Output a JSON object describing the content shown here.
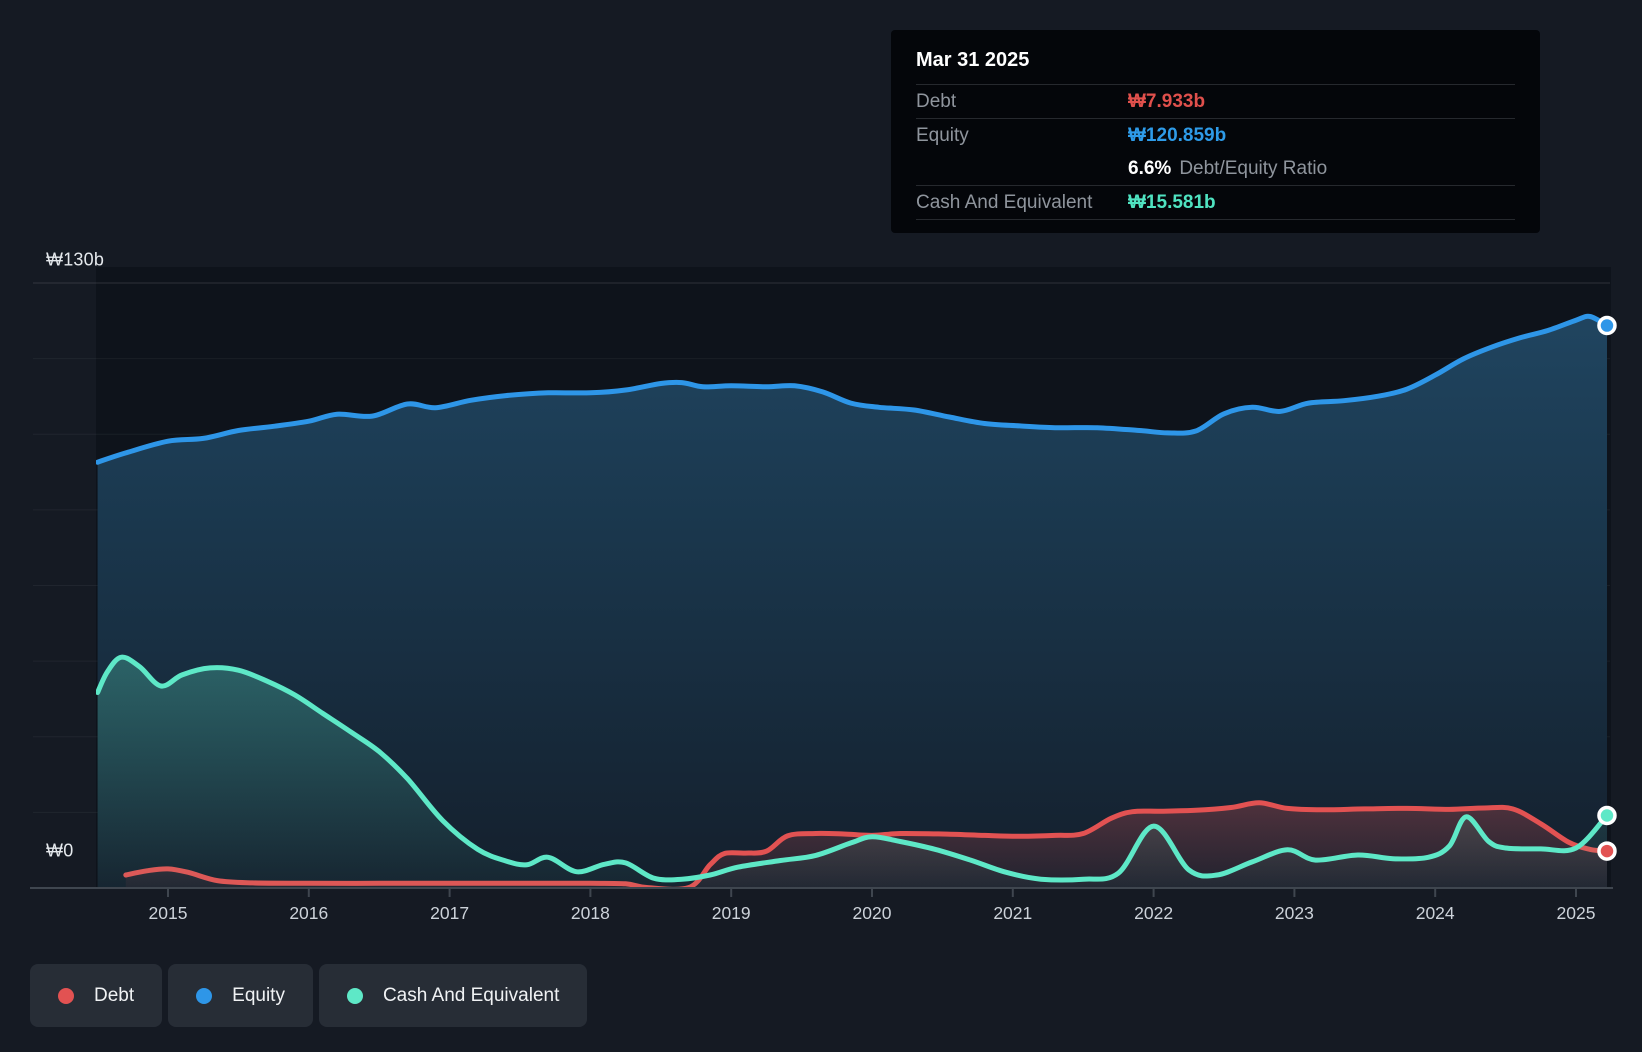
{
  "colors": {
    "debt": "#e25252",
    "equity": "#2e96e8",
    "cash": "#5ee8c7",
    "debt_text": "#e0504c",
    "equity_text": "#2e9be8",
    "cash_text": "#4fe3c1",
    "background": "#151a23",
    "plot_background": "#0e131b",
    "axis_line": "#3f464f",
    "tooltip_background": "#04060a"
  },
  "tooltip": {
    "title": "Mar 31 2025",
    "rows": [
      {
        "label": "Debt",
        "value": "₩7.933b",
        "color_key": "debt_text"
      },
      {
        "label": "Equity",
        "value": "₩120.859b",
        "color_key": "equity_text"
      },
      {
        "label": "Cash And Equivalent",
        "value": "₩15.581b",
        "color_key": "cash_text"
      }
    ],
    "ratio_value": "6.6%",
    "ratio_label": "Debt/Equity Ratio"
  },
  "axis": {
    "y_top_label": "₩130b",
    "y_zero_label": "₩0"
  },
  "legend": {
    "items": [
      {
        "label": "Debt",
        "series": "debt"
      },
      {
        "label": "Equity",
        "series": "equity"
      },
      {
        "label": "Cash And Equivalent",
        "series": "cash"
      }
    ]
  },
  "chart_data": {
    "type": "area",
    "x_axis": {
      "tick_years": [
        2015,
        2016,
        2017,
        2018,
        2019,
        2020,
        2021,
        2022,
        2023,
        2024,
        2025
      ],
      "tick_labels": [
        "2015",
        "2016",
        "2017",
        "2018",
        "2019",
        "2020",
        "2021",
        "2022",
        "2023",
        "2024",
        "2025"
      ],
      "start": 2014.5,
      "end": 2025.25
    },
    "y_axis": {
      "min": 0,
      "max": 130,
      "unit": "₩b",
      "gridline_divisions": 8,
      "grid": true
    },
    "legend_position": "bottom-left",
    "series": [
      {
        "id": "equity",
        "name": "Equity",
        "color": "#2e96e8",
        "end_value": 120.859,
        "points": [
          [
            2014.5,
            91.5
          ],
          [
            2014.7,
            93.5
          ],
          [
            2015,
            96
          ],
          [
            2015.25,
            96.6
          ],
          [
            2015.5,
            98.3
          ],
          [
            2015.75,
            99.2
          ],
          [
            2016,
            100.3
          ],
          [
            2016.2,
            101.8
          ],
          [
            2016.45,
            101.4
          ],
          [
            2016.7,
            104
          ],
          [
            2016.9,
            103.2
          ],
          [
            2017.15,
            104.8
          ],
          [
            2017.4,
            105.8
          ],
          [
            2017.7,
            106.4
          ],
          [
            2018,
            106.4
          ],
          [
            2018.25,
            107
          ],
          [
            2018.5,
            108.4
          ],
          [
            2018.65,
            108.6
          ],
          [
            2018.8,
            107.7
          ],
          [
            2019,
            107.9
          ],
          [
            2019.25,
            107.7
          ],
          [
            2019.45,
            107.9
          ],
          [
            2019.65,
            106.6
          ],
          [
            2019.85,
            104.2
          ],
          [
            2020.05,
            103.3
          ],
          [
            2020.3,
            102.7
          ],
          [
            2020.55,
            101.2
          ],
          [
            2020.8,
            99.8
          ],
          [
            2021.05,
            99.3
          ],
          [
            2021.3,
            98.9
          ],
          [
            2021.6,
            98.9
          ],
          [
            2021.9,
            98.3
          ],
          [
            2022.1,
            97.8
          ],
          [
            2022.3,
            98.2
          ],
          [
            2022.5,
            101.9
          ],
          [
            2022.7,
            103.3
          ],
          [
            2022.9,
            102.4
          ],
          [
            2023.1,
            104.2
          ],
          [
            2023.35,
            104.7
          ],
          [
            2023.6,
            105.7
          ],
          [
            2023.8,
            107.2
          ],
          [
            2024,
            110.2
          ],
          [
            2024.2,
            113.7
          ],
          [
            2024.4,
            116.2
          ],
          [
            2024.6,
            118.2
          ],
          [
            2024.8,
            119.8
          ],
          [
            2025,
            122
          ],
          [
            2025.1,
            122.8
          ],
          [
            2025.22,
            120.859
          ]
        ]
      },
      {
        "id": "debt",
        "name": "Debt",
        "color": "#e25252",
        "end_value": 7.933,
        "points": [
          [
            2014.7,
            2.8
          ],
          [
            2014.85,
            3.7
          ],
          [
            2015,
            4.1
          ],
          [
            2015.15,
            3.3
          ],
          [
            2015.35,
            1.6
          ],
          [
            2015.6,
            1.1
          ],
          [
            2016,
            1
          ],
          [
            2016.5,
            1
          ],
          [
            2017,
            1
          ],
          [
            2017.5,
            1
          ],
          [
            2018,
            1
          ],
          [
            2018.25,
            0.9
          ],
          [
            2018.4,
            0.1
          ],
          [
            2018.7,
            0.1
          ],
          [
            2018.85,
            5
          ],
          [
            2018.95,
            7.4
          ],
          [
            2019.1,
            7.5
          ],
          [
            2019.25,
            7.9
          ],
          [
            2019.4,
            11.2
          ],
          [
            2019.6,
            11.7
          ],
          [
            2019.8,
            11.6
          ],
          [
            2020,
            11.3
          ],
          [
            2020.2,
            11.7
          ],
          [
            2020.5,
            11.6
          ],
          [
            2020.8,
            11.3
          ],
          [
            2021.05,
            11.1
          ],
          [
            2021.3,
            11.3
          ],
          [
            2021.5,
            11.7
          ],
          [
            2021.7,
            15
          ],
          [
            2021.85,
            16.4
          ],
          [
            2022.05,
            16.5
          ],
          [
            2022.3,
            16.7
          ],
          [
            2022.55,
            17.3
          ],
          [
            2022.75,
            18.3
          ],
          [
            2022.95,
            17.1
          ],
          [
            2023.2,
            16.8
          ],
          [
            2023.5,
            17
          ],
          [
            2023.8,
            17.1
          ],
          [
            2024.1,
            16.9
          ],
          [
            2024.35,
            17.2
          ],
          [
            2024.55,
            17
          ],
          [
            2024.75,
            13.8
          ],
          [
            2024.95,
            9.8
          ],
          [
            2025.1,
            8.3
          ],
          [
            2025.22,
            7.933
          ]
        ]
      },
      {
        "id": "cash",
        "name": "Cash And Equivalent",
        "color": "#5ee8c7",
        "end_value": 15.581,
        "points": [
          [
            2014.5,
            42
          ],
          [
            2014.57,
            46.5
          ],
          [
            2014.67,
            49.6
          ],
          [
            2014.8,
            47.5
          ],
          [
            2014.95,
            43.4
          ],
          [
            2015.1,
            45.8
          ],
          [
            2015.3,
            47.3
          ],
          [
            2015.5,
            46.8
          ],
          [
            2015.7,
            44.5
          ],
          [
            2015.9,
            41.5
          ],
          [
            2016.1,
            37.5
          ],
          [
            2016.3,
            33.5
          ],
          [
            2016.5,
            29.3
          ],
          [
            2016.7,
            23.5
          ],
          [
            2016.95,
            14.5
          ],
          [
            2017.2,
            8.3
          ],
          [
            2017.4,
            5.8
          ],
          [
            2017.55,
            5
          ],
          [
            2017.7,
            6.6
          ],
          [
            2017.9,
            3.5
          ],
          [
            2018.1,
            5.1
          ],
          [
            2018.25,
            5.4
          ],
          [
            2018.45,
            2.1
          ],
          [
            2018.65,
            1.9
          ],
          [
            2018.85,
            2.8
          ],
          [
            2019.05,
            4.5
          ],
          [
            2019.35,
            5.9
          ],
          [
            2019.6,
            7
          ],
          [
            2019.85,
            9.7
          ],
          [
            2020,
            11
          ],
          [
            2020.2,
            10
          ],
          [
            2020.45,
            8.3
          ],
          [
            2020.7,
            6
          ],
          [
            2020.95,
            3.4
          ],
          [
            2021.2,
            1.9
          ],
          [
            2021.5,
            1.9
          ],
          [
            2021.75,
            3.2
          ],
          [
            2022,
            13.3
          ],
          [
            2022.25,
            3.9
          ],
          [
            2022.45,
            2.8
          ],
          [
            2022.7,
            5.6
          ],
          [
            2022.95,
            8.2
          ],
          [
            2023.15,
            6
          ],
          [
            2023.45,
            7.1
          ],
          [
            2023.7,
            6.3
          ],
          [
            2023.95,
            6.6
          ],
          [
            2024.1,
            9
          ],
          [
            2024.22,
            15.3
          ],
          [
            2024.38,
            10
          ],
          [
            2024.5,
            8.6
          ],
          [
            2024.75,
            8.4
          ],
          [
            2025,
            8.6
          ],
          [
            2025.22,
            15.581
          ]
        ]
      }
    ]
  }
}
